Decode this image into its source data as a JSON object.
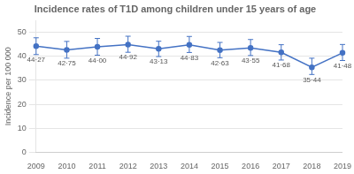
{
  "chart_data": {
    "type": "line",
    "title": "Incidence rates of T1D among children under 15 years of age",
    "ylabel": "Incidence per 100 000",
    "categories": [
      "2009",
      "2010",
      "2011",
      "2012",
      "2013",
      "2014",
      "2015",
      "2016",
      "2017",
      "2018",
      "2019"
    ],
    "values": [
      44.27,
      42.75,
      44.0,
      44.92,
      43.13,
      44.83,
      42.63,
      43.55,
      41.68,
      35.44,
      41.48
    ],
    "value_labels": [
      "44·27",
      "42·75",
      "44·00",
      "44·92",
      "43·13",
      "44·83",
      "42·63",
      "43·55",
      "41·68",
      "35·44",
      "41·48"
    ],
    "yerr_upper": [
      3.5,
      3.5,
      3.5,
      3.5,
      3.2,
      3.5,
      3.2,
      3.5,
      3.2,
      3.8,
      3.5
    ],
    "yerr_lower": [
      3.5,
      3.5,
      3.5,
      3.2,
      3.2,
      3.2,
      3.2,
      3.2,
      3.2,
      3.0,
      3.2
    ],
    "color": "#4472C4",
    "ylim": [
      0,
      55
    ],
    "yticks": [
      0,
      10,
      20,
      30,
      40,
      50
    ],
    "grid": true,
    "data_labels": true
  }
}
